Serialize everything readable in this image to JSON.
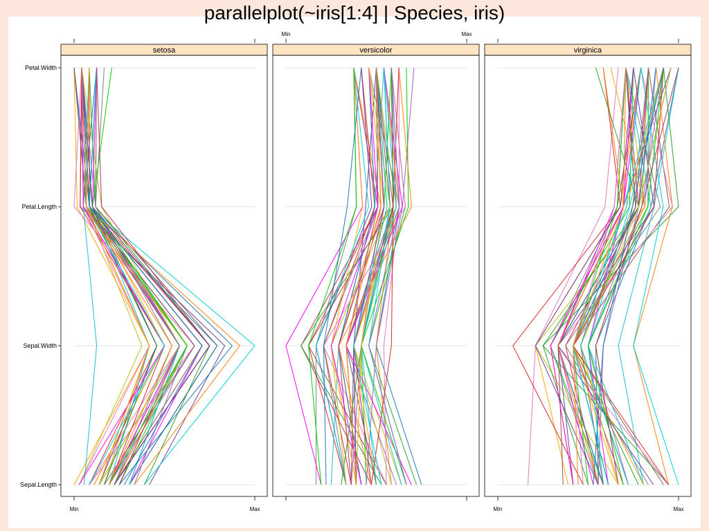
{
  "page": {
    "title": "parallelplot(~iris[1:4] | Species, iris)"
  },
  "chart_data": {
    "type": "parallel",
    "variables": [
      "Sepal.Length",
      "Sepal.Width",
      "Petal.Length",
      "Petal.Width"
    ],
    "scale_labels": {
      "min": "Min",
      "max": "Max"
    },
    "line_colors": [
      "#1f77b4",
      "#ff7f0e",
      "#2ca02c",
      "#d62728",
      "#9467bd",
      "#8c564b",
      "#e377c2",
      "#7f7f7f",
      "#bcbd22",
      "#17becf",
      "#ff00ff",
      "#00cc00",
      "#b03060",
      "#ffa500",
      "#6a3d9a",
      "#00ced1"
    ],
    "strip_color": "#ffe4c4",
    "panels": [
      {
        "species": "setosa",
        "observations": [
          [
            5.1,
            3.5,
            1.4,
            0.2
          ],
          [
            4.9,
            3.0,
            1.4,
            0.2
          ],
          [
            4.7,
            3.2,
            1.3,
            0.2
          ],
          [
            4.6,
            3.1,
            1.5,
            0.2
          ],
          [
            5.0,
            3.6,
            1.4,
            0.2
          ],
          [
            5.4,
            3.9,
            1.7,
            0.4
          ],
          [
            4.6,
            3.4,
            1.4,
            0.3
          ],
          [
            5.0,
            3.4,
            1.5,
            0.2
          ],
          [
            4.4,
            2.9,
            1.4,
            0.2
          ],
          [
            4.9,
            3.1,
            1.5,
            0.1
          ],
          [
            5.4,
            3.7,
            1.5,
            0.2
          ],
          [
            4.8,
            3.4,
            1.6,
            0.2
          ],
          [
            4.8,
            3.0,
            1.4,
            0.1
          ],
          [
            4.3,
            3.0,
            1.1,
            0.1
          ],
          [
            5.8,
            4.0,
            1.2,
            0.2
          ],
          [
            5.7,
            4.4,
            1.5,
            0.4
          ],
          [
            5.4,
            3.9,
            1.3,
            0.4
          ],
          [
            5.1,
            3.5,
            1.4,
            0.3
          ],
          [
            5.7,
            3.8,
            1.7,
            0.3
          ],
          [
            5.1,
            3.8,
            1.5,
            0.3
          ],
          [
            5.4,
            3.4,
            1.7,
            0.2
          ],
          [
            5.1,
            3.7,
            1.5,
            0.4
          ],
          [
            4.6,
            3.6,
            1.0,
            0.2
          ],
          [
            5.1,
            3.3,
            1.7,
            0.5
          ],
          [
            4.8,
            3.4,
            1.9,
            0.2
          ],
          [
            5.0,
            3.0,
            1.6,
            0.2
          ],
          [
            5.0,
            3.4,
            1.6,
            0.4
          ],
          [
            5.2,
            3.5,
            1.5,
            0.2
          ],
          [
            5.2,
            3.4,
            1.4,
            0.2
          ],
          [
            4.7,
            3.2,
            1.6,
            0.2
          ],
          [
            4.8,
            3.1,
            1.6,
            0.2
          ],
          [
            5.4,
            3.4,
            1.5,
            0.4
          ],
          [
            5.2,
            4.1,
            1.5,
            0.1
          ],
          [
            5.5,
            4.2,
            1.4,
            0.2
          ],
          [
            4.9,
            3.1,
            1.5,
            0.2
          ],
          [
            5.0,
            3.2,
            1.2,
            0.2
          ],
          [
            5.5,
            3.5,
            1.3,
            0.2
          ],
          [
            4.9,
            3.6,
            1.4,
            0.1
          ],
          [
            4.4,
            3.0,
            1.3,
            0.2
          ],
          [
            5.1,
            3.4,
            1.5,
            0.2
          ],
          [
            5.0,
            3.5,
            1.3,
            0.3
          ],
          [
            4.5,
            2.3,
            1.3,
            0.3
          ],
          [
            4.4,
            3.2,
            1.3,
            0.2
          ],
          [
            5.0,
            3.5,
            1.6,
            0.6
          ],
          [
            5.1,
            3.8,
            1.9,
            0.4
          ],
          [
            4.8,
            3.0,
            1.4,
            0.3
          ],
          [
            5.1,
            3.8,
            1.6,
            0.2
          ],
          [
            4.6,
            3.2,
            1.4,
            0.2
          ],
          [
            5.3,
            3.7,
            1.5,
            0.2
          ],
          [
            5.0,
            3.3,
            1.4,
            0.2
          ]
        ]
      },
      {
        "species": "versicolor",
        "observations": [
          [
            7.0,
            3.2,
            4.7,
            1.4
          ],
          [
            6.4,
            3.2,
            4.5,
            1.5
          ],
          [
            6.9,
            3.1,
            4.9,
            1.5
          ],
          [
            5.5,
            2.3,
            4.0,
            1.3
          ],
          [
            6.5,
            2.8,
            4.6,
            1.5
          ],
          [
            5.7,
            2.8,
            4.5,
            1.3
          ],
          [
            6.3,
            3.3,
            4.7,
            1.6
          ],
          [
            4.9,
            2.4,
            3.3,
            1.0
          ],
          [
            6.6,
            2.9,
            4.6,
            1.3
          ],
          [
            5.2,
            2.7,
            3.9,
            1.4
          ],
          [
            5.0,
            2.0,
            3.5,
            1.0
          ],
          [
            5.9,
            3.0,
            4.2,
            1.5
          ],
          [
            6.0,
            2.2,
            4.0,
            1.0
          ],
          [
            6.1,
            2.9,
            4.7,
            1.4
          ],
          [
            5.6,
            2.9,
            3.6,
            1.3
          ],
          [
            6.7,
            3.1,
            4.4,
            1.4
          ],
          [
            5.6,
            3.0,
            4.5,
            1.5
          ],
          [
            5.8,
            2.7,
            4.1,
            1.0
          ],
          [
            6.2,
            2.2,
            4.5,
            1.5
          ],
          [
            5.6,
            2.5,
            3.9,
            1.1
          ],
          [
            5.9,
            3.2,
            4.8,
            1.8
          ],
          [
            6.1,
            2.8,
            4.0,
            1.3
          ],
          [
            6.3,
            2.5,
            4.9,
            1.5
          ],
          [
            6.1,
            2.8,
            4.7,
            1.2
          ],
          [
            6.4,
            2.9,
            4.3,
            1.3
          ],
          [
            6.6,
            3.0,
            4.4,
            1.4
          ],
          [
            6.8,
            2.8,
            4.8,
            1.4
          ],
          [
            6.7,
            3.0,
            5.0,
            1.7
          ],
          [
            6.0,
            2.9,
            4.5,
            1.5
          ],
          [
            5.7,
            2.6,
            3.5,
            1.0
          ],
          [
            5.5,
            2.4,
            3.8,
            1.1
          ],
          [
            5.5,
            2.4,
            3.7,
            1.0
          ],
          [
            5.8,
            2.7,
            3.9,
            1.2
          ],
          [
            6.0,
            2.7,
            5.1,
            1.6
          ],
          [
            5.4,
            3.0,
            4.5,
            1.5
          ],
          [
            6.0,
            3.4,
            4.5,
            1.6
          ],
          [
            6.7,
            3.1,
            4.7,
            1.5
          ],
          [
            6.3,
            2.3,
            4.4,
            1.3
          ],
          [
            5.6,
            3.0,
            4.1,
            1.3
          ],
          [
            5.5,
            2.5,
            4.0,
            1.3
          ],
          [
            5.5,
            2.6,
            4.4,
            1.2
          ],
          [
            6.1,
            3.0,
            4.6,
            1.4
          ],
          [
            5.8,
            2.6,
            4.0,
            1.2
          ],
          [
            5.0,
            2.3,
            3.3,
            1.0
          ],
          [
            5.6,
            2.7,
            4.2,
            1.3
          ],
          [
            5.7,
            3.0,
            4.2,
            1.2
          ],
          [
            5.7,
            2.9,
            4.2,
            1.3
          ],
          [
            6.2,
            2.9,
            4.3,
            1.3
          ],
          [
            5.1,
            2.5,
            3.0,
            1.1
          ],
          [
            5.7,
            2.8,
            4.1,
            1.3
          ]
        ]
      },
      {
        "species": "virginica",
        "observations": [
          [
            6.3,
            3.3,
            6.0,
            2.5
          ],
          [
            5.8,
            2.7,
            5.1,
            1.9
          ],
          [
            7.1,
            3.0,
            5.9,
            2.1
          ],
          [
            6.3,
            2.9,
            5.6,
            1.8
          ],
          [
            6.5,
            3.0,
            5.8,
            2.2
          ],
          [
            7.6,
            3.0,
            6.6,
            2.1
          ],
          [
            4.9,
            2.5,
            4.5,
            1.7
          ],
          [
            7.3,
            2.9,
            6.3,
            1.8
          ],
          [
            6.7,
            2.5,
            5.8,
            1.8
          ],
          [
            7.2,
            3.6,
            6.1,
            2.5
          ],
          [
            6.5,
            3.2,
            5.1,
            2.0
          ],
          [
            6.4,
            2.7,
            5.3,
            1.9
          ],
          [
            6.8,
            3.0,
            5.5,
            2.1
          ],
          [
            5.7,
            2.5,
            5.0,
            2.0
          ],
          [
            5.8,
            2.8,
            5.1,
            2.4
          ],
          [
            6.4,
            3.2,
            5.3,
            2.3
          ],
          [
            6.5,
            3.0,
            5.5,
            1.8
          ],
          [
            7.7,
            3.8,
            6.7,
            2.2
          ],
          [
            7.7,
            2.6,
            6.9,
            2.3
          ],
          [
            6.0,
            2.2,
            5.0,
            1.5
          ],
          [
            6.9,
            3.2,
            5.7,
            2.3
          ],
          [
            5.6,
            2.8,
            4.9,
            2.0
          ],
          [
            7.7,
            2.8,
            6.7,
            2.0
          ],
          [
            6.3,
            2.7,
            4.9,
            1.8
          ],
          [
            6.7,
            3.3,
            5.7,
            2.1
          ],
          [
            7.2,
            3.2,
            6.0,
            1.8
          ],
          [
            6.2,
            2.8,
            4.8,
            1.8
          ],
          [
            6.1,
            3.0,
            4.9,
            1.8
          ],
          [
            6.4,
            2.8,
            5.6,
            2.1
          ],
          [
            7.2,
            3.0,
            5.8,
            1.6
          ],
          [
            7.4,
            2.8,
            6.1,
            1.9
          ],
          [
            7.9,
            3.8,
            6.4,
            2.0
          ],
          [
            6.4,
            2.8,
            5.6,
            2.2
          ],
          [
            6.3,
            2.8,
            5.1,
            1.5
          ],
          [
            6.1,
            2.6,
            5.6,
            1.4
          ],
          [
            7.7,
            3.0,
            6.1,
            2.3
          ],
          [
            6.3,
            3.4,
            5.6,
            2.4
          ],
          [
            6.4,
            3.1,
            5.5,
            1.8
          ],
          [
            6.0,
            3.0,
            4.8,
            1.8
          ],
          [
            6.9,
            3.1,
            5.4,
            2.1
          ],
          [
            6.7,
            3.1,
            5.6,
            2.4
          ],
          [
            6.9,
            3.1,
            5.1,
            2.3
          ],
          [
            5.8,
            2.7,
            5.1,
            1.9
          ],
          [
            6.8,
            3.2,
            5.9,
            2.3
          ],
          [
            6.7,
            3.3,
            5.7,
            2.5
          ],
          [
            6.7,
            3.0,
            5.2,
            2.3
          ],
          [
            6.3,
            2.5,
            5.0,
            1.9
          ],
          [
            6.5,
            3.0,
            5.2,
            2.0
          ],
          [
            6.2,
            3.4,
            5.4,
            2.3
          ],
          [
            5.9,
            3.0,
            5.1,
            1.8
          ]
        ]
      }
    ],
    "axis_ranges": {
      "Sepal.Length": [
        4.3,
        7.9
      ],
      "Sepal.Width": [
        2.0,
        4.4
      ],
      "Petal.Length": [
        1.0,
        6.9
      ],
      "Petal.Width": [
        0.1,
        2.5
      ]
    },
    "grid": true,
    "legend": "none"
  }
}
